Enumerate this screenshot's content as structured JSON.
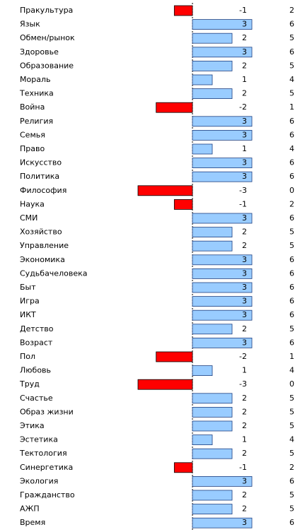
{
  "chart_data": {
    "type": "bar",
    "categories": [
      "Пракультура",
      "Язык",
      "Обмен/рынок",
      "Здоровье",
      "Образование",
      "Мораль",
      "Техника",
      "Война",
      "Религия",
      "Семья",
      "Право",
      "Искусство",
      "Политика",
      "Философия",
      "Наука",
      "СМИ",
      "Хозяйство",
      "Управление",
      "Экономика",
      "Судьбачеловека",
      "Быт",
      "Игра",
      "ИКТ",
      "Детство",
      "Возраст",
      "Пол",
      "Любовь",
      "Труд",
      "Счастье",
      "Образ жизни",
      "Этика",
      "Эстетика",
      "Тектология",
      "Синергетика",
      "Экология",
      "Гражданство",
      "АЖП",
      "Время"
    ],
    "values": [
      -1,
      3,
      2,
      3,
      2,
      1,
      2,
      -2,
      3,
      3,
      1,
      3,
      3,
      -3,
      -1,
      3,
      2,
      2,
      3,
      3,
      3,
      3,
      3,
      2,
      3,
      -2,
      1,
      -3,
      2,
      2,
      2,
      1,
      2,
      -1,
      3,
      2,
      2,
      3
    ],
    "totals": [
      2,
      6,
      5,
      6,
      5,
      4,
      5,
      1,
      6,
      6,
      4,
      6,
      6,
      0,
      2,
      6,
      5,
      5,
      6,
      6,
      6,
      6,
      6,
      5,
      6,
      1,
      4,
      0,
      5,
      5,
      5,
      4,
      5,
      2,
      6,
      5,
      5,
      6
    ],
    "positive_color": "#99ccff",
    "negative_color": "#ff0000",
    "xlim": [
      -3,
      3
    ]
  }
}
